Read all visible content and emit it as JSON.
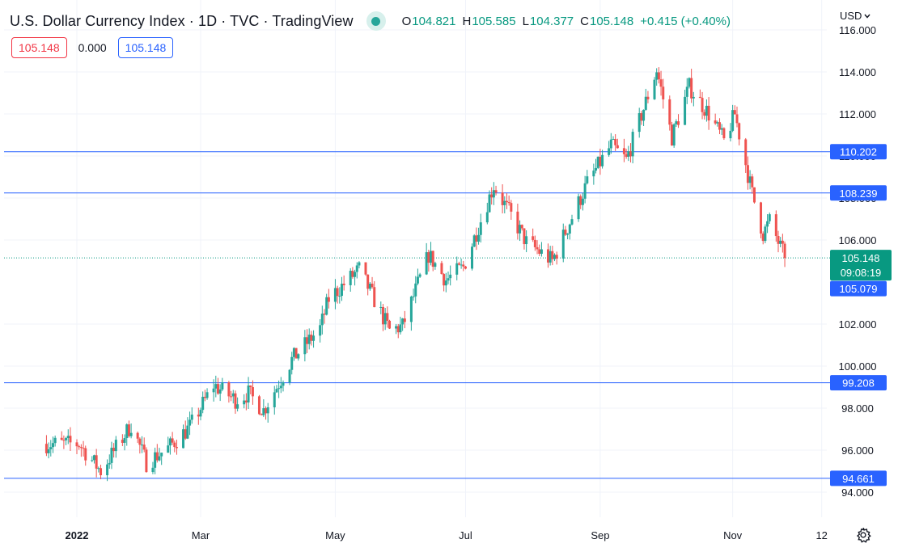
{
  "header": {
    "title": "U.S. Dollar Currency Index · 1D · TVC · TradingView",
    "ohlc": [
      {
        "key": "O",
        "value": "104.821"
      },
      {
        "key": "H",
        "value": "105.585"
      },
      {
        "key": "L",
        "value": "104.377"
      },
      {
        "key": "C",
        "value": "105.148"
      }
    ],
    "change": "+0.415 (+0.40%)",
    "currency": "USD"
  },
  "indicator_row": {
    "left": "105.148",
    "mid": "0.000",
    "right": "105.148"
  },
  "icons": {
    "status_dot": "live-status-dot-icon",
    "currency_caret": "chevron-down-icon",
    "settings": "gear-icon"
  },
  "colors": {
    "up": "#26a69a",
    "down": "#ef5350",
    "hline": "#2962ff",
    "price_tag": "#089981",
    "grid": "#f0f3fa",
    "axis_text": "#131722"
  },
  "chart_data": {
    "type": "candlestick",
    "title": "U.S. Dollar Currency Index · 1D · TVC · TradingView",
    "ylim": [
      93.2,
      116.2
    ],
    "y_ticks": [
      "116.000",
      "114.000",
      "112.000",
      "110.000",
      "108.000",
      "106.000",
      "102.000",
      "100.000",
      "98.000",
      "96.000",
      "94.000"
    ],
    "x_range": [
      "2021-12-20",
      "2022-11-25"
    ],
    "x_ticks": [
      {
        "label": "2022",
        "date": "2022-01-03",
        "bold": true
      },
      {
        "label": "Mar",
        "date": "2022-03-01",
        "bold": false
      },
      {
        "label": "May",
        "date": "2022-05-02",
        "bold": false
      },
      {
        "label": "Jul",
        "date": "2022-07-01",
        "bold": false
      },
      {
        "label": "Sep",
        "date": "2022-09-01",
        "bold": false
      },
      {
        "label": "Nov",
        "date": "2022-11-01",
        "bold": false
      },
      {
        "label": "12",
        "date": "2022-12-12",
        "bold": false
      }
    ],
    "path_anchors": [
      [
        "2021-12-20",
        96.3
      ],
      [
        "2022-01-04",
        96.3
      ],
      [
        "2022-01-14",
        95.0
      ],
      [
        "2022-01-28",
        97.2
      ],
      [
        "2022-02-04",
        95.4
      ],
      [
        "2022-02-14",
        96.1
      ],
      [
        "2022-02-24",
        97.1
      ],
      [
        "2022-03-07",
        99.1
      ],
      [
        "2022-03-17",
        98.4
      ],
      [
        "2022-03-23",
        98.7
      ],
      [
        "2022-03-30",
        97.9
      ],
      [
        "2022-04-12",
        100.3
      ],
      [
        "2022-04-25",
        101.8
      ],
      [
        "2022-04-29",
        103.2
      ],
      [
        "2022-05-13",
        104.6
      ],
      [
        "2022-05-27",
        101.7
      ],
      [
        "2022-06-02",
        101.9
      ],
      [
        "2022-06-14",
        105.3
      ],
      [
        "2022-06-22",
        104.1
      ],
      [
        "2022-06-30",
        104.7
      ],
      [
        "2022-07-14",
        108.6
      ],
      [
        "2022-07-29",
        105.9
      ],
      [
        "2022-08-10",
        105.0
      ],
      [
        "2022-08-26",
        108.7
      ],
      [
        "2022-09-06",
        110.5
      ],
      [
        "2022-09-13",
        109.8
      ],
      [
        "2022-09-27",
        114.1
      ],
      [
        "2022-10-04",
        110.9
      ],
      [
        "2022-10-12",
        113.3
      ],
      [
        "2022-10-21",
        112.0
      ],
      [
        "2022-10-28",
        110.7
      ],
      [
        "2022-11-02",
        112.0
      ],
      [
        "2022-11-10",
        108.2
      ],
      [
        "2022-11-15",
        106.3
      ],
      [
        "2022-11-18",
        106.9
      ],
      [
        "2022-11-25",
        105.148
      ]
    ],
    "horizontal_levels": [
      {
        "value": 110.202,
        "label": "110.202"
      },
      {
        "value": 108.239,
        "label": "108.239"
      },
      {
        "value": 99.208,
        "label": "99.208"
      },
      {
        "value": 94.661,
        "label": "94.661"
      }
    ],
    "last_price": {
      "value": 105.148,
      "label": "105.148",
      "countdown": "09:08:19"
    },
    "low_marker": {
      "value": 105.079,
      "label": "105.079"
    }
  }
}
